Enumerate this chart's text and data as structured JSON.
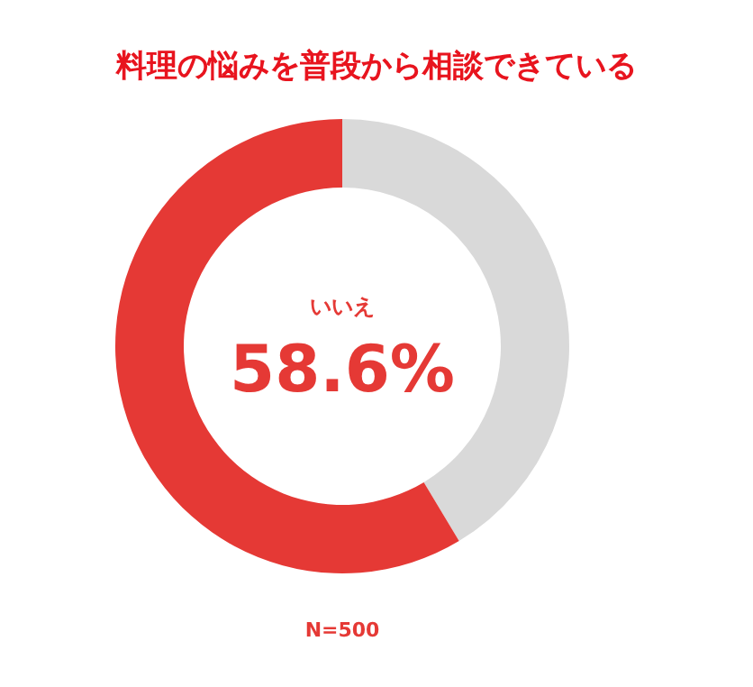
{
  "chart_data": {
    "type": "donut",
    "title": "料理の悩みを普段から相談できている",
    "categories": [
      null,
      "いいえ"
    ],
    "values": [
      41.4,
      58.6
    ],
    "colors": [
      "#d9d9d9",
      "#e53935"
    ],
    "value_labels": [
      null,
      "58.6%"
    ],
    "legend": false,
    "annotations": [
      "N=500"
    ]
  }
}
